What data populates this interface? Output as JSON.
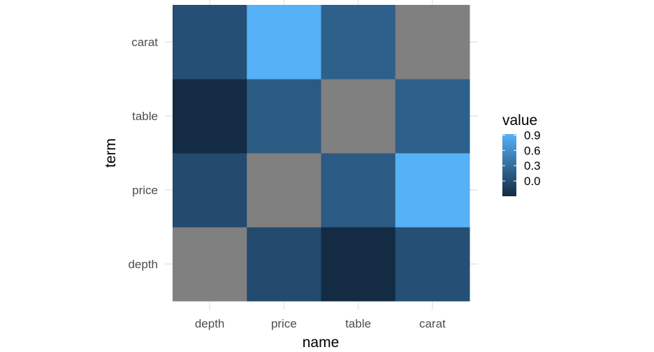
{
  "chart_data": {
    "type": "heatmap",
    "title": "",
    "xlabel": "name",
    "ylabel": "term",
    "x_categories": [
      "depth",
      "price",
      "table",
      "carat"
    ],
    "y_categories": [
      "depth",
      "price",
      "table",
      "carat"
    ],
    "values": [
      [
        null,
        -0.01,
        -0.3,
        0.03
      ],
      [
        -0.01,
        null,
        0.13,
        0.92
      ],
      [
        -0.3,
        0.13,
        null,
        0.18
      ],
      [
        0.03,
        0.92,
        0.18,
        null
      ]
    ],
    "na_color": "#808080",
    "color_scale": {
      "low": "#132B43",
      "high": "#56B1F7",
      "domain": [
        -0.3,
        0.92
      ]
    },
    "legend": {
      "title": "value",
      "breaks": [
        0.9,
        0.6,
        0.3,
        0.0
      ],
      "labels": [
        "0.9",
        "0.6",
        "0.3",
        "0.0"
      ],
      "placement": "right"
    },
    "grid": true
  }
}
